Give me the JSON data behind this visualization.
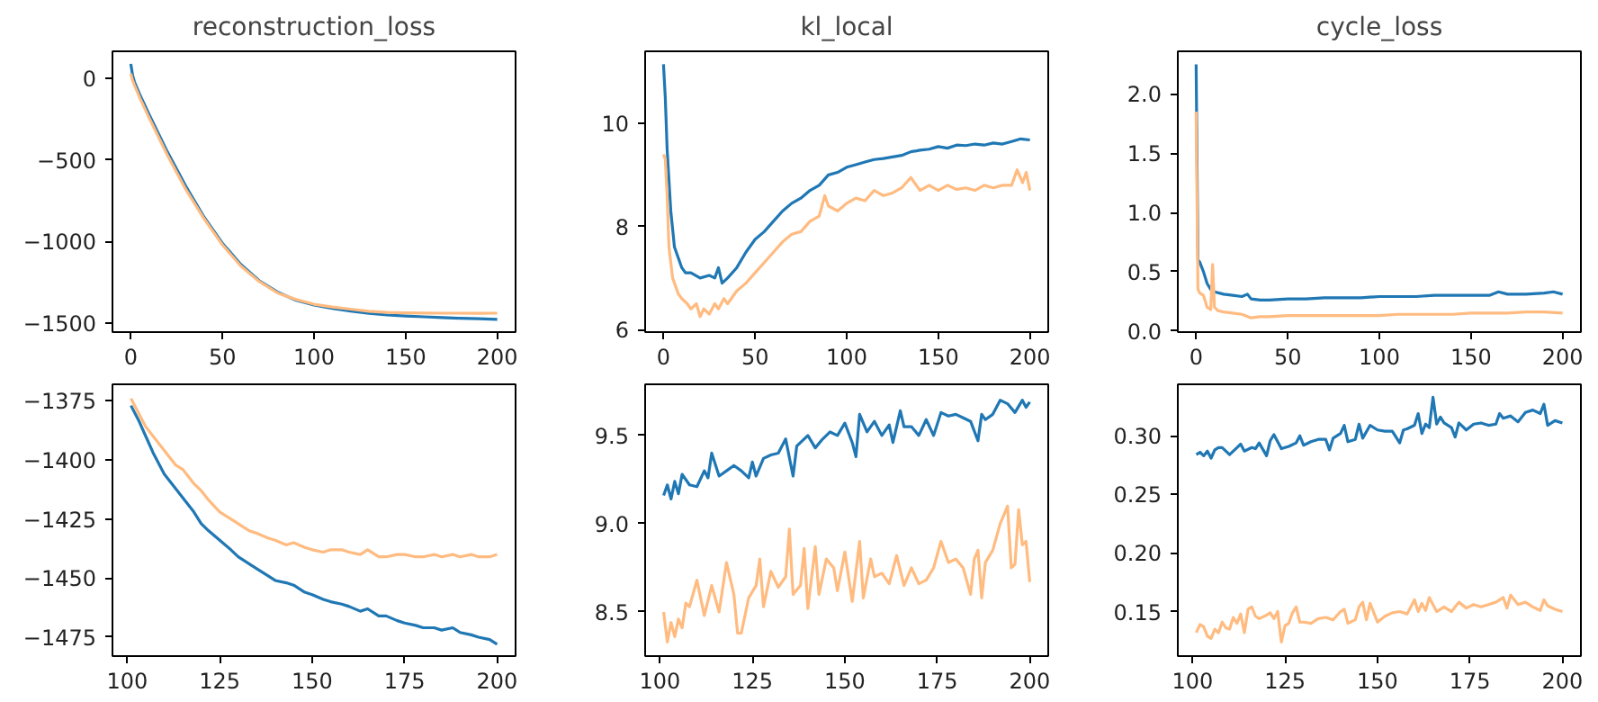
{
  "chart_data": [
    {
      "type": "line",
      "title": "reconstruction_loss",
      "grid": false,
      "xlim": [
        -10,
        210
      ],
      "ylim": [
        -1556,
        168
      ],
      "xticks": [
        0,
        50,
        100,
        150,
        200
      ],
      "yticks": [
        {
          "value": -1500,
          "label": "−1500"
        },
        {
          "value": -1000,
          "label": "−1000"
        },
        {
          "value": -500,
          "label": "−500"
        },
        0
      ],
      "series": [
        {
          "color": "#1f77b4",
          "x": [
            0,
            1,
            2,
            5,
            10,
            20,
            30,
            40,
            50,
            60,
            70,
            80,
            90,
            100,
            110,
            120,
            130,
            140,
            150,
            160,
            170,
            180,
            190,
            200
          ],
          "values": [
            90,
            20,
            -20,
            -100,
            -220,
            -450,
            -660,
            -850,
            -1010,
            -1140,
            -1240,
            -1310,
            -1360,
            -1390,
            -1410,
            -1427,
            -1441,
            -1451,
            -1457,
            -1462,
            -1467,
            -1471,
            -1474,
            -1478
          ]
        },
        {
          "color": "#ffbb80",
          "x": [
            0,
            1,
            2,
            5,
            10,
            20,
            30,
            40,
            50,
            60,
            70,
            80,
            90,
            100,
            110,
            120,
            130,
            140,
            150,
            160,
            170,
            180,
            190,
            200
          ],
          "values": [
            30,
            -10,
            -40,
            -120,
            -240,
            -470,
            -680,
            -860,
            -1020,
            -1150,
            -1245,
            -1315,
            -1355,
            -1385,
            -1402,
            -1415,
            -1428,
            -1435,
            -1438,
            -1439,
            -1440,
            -1440,
            -1441,
            -1440
          ]
        }
      ]
    },
    {
      "type": "line",
      "title": "kl_local",
      "grid": false,
      "xlim": [
        -10,
        210
      ],
      "ylim": [
        5.95,
        11.4
      ],
      "xticks": [
        0,
        50,
        100,
        150,
        200
      ],
      "yticks": [
        6,
        8,
        10
      ],
      "series": [
        {
          "color": "#1f77b4",
          "x": [
            0,
            1,
            2,
            4,
            6,
            8,
            10,
            12,
            15,
            20,
            25,
            28,
            30,
            32,
            35,
            40,
            45,
            50,
            55,
            60,
            65,
            70,
            75,
            80,
            85,
            90,
            95,
            100,
            105,
            110,
            115,
            120,
            125,
            130,
            135,
            140,
            145,
            150,
            155,
            160,
            165,
            170,
            175,
            180,
            185,
            190,
            195,
            200
          ],
          "values": [
            11.15,
            10.5,
            9.5,
            8.3,
            7.6,
            7.4,
            7.2,
            7.1,
            7.1,
            7.0,
            7.05,
            7.0,
            7.2,
            6.9,
            7.0,
            7.2,
            7.5,
            7.75,
            7.9,
            8.1,
            8.3,
            8.45,
            8.55,
            8.7,
            8.8,
            9.0,
            9.05,
            9.15,
            9.2,
            9.25,
            9.3,
            9.32,
            9.35,
            9.38,
            9.45,
            9.48,
            9.5,
            9.55,
            9.52,
            9.58,
            9.57,
            9.6,
            9.58,
            9.62,
            9.6,
            9.65,
            9.7,
            9.68
          ]
        },
        {
          "color": "#ffbb80",
          "x": [
            0,
            1,
            2,
            3,
            5,
            8,
            10,
            13,
            15,
            18,
            20,
            22,
            25,
            28,
            30,
            33,
            35,
            40,
            45,
            50,
            55,
            60,
            65,
            70,
            75,
            80,
            85,
            88,
            90,
            95,
            100,
            105,
            110,
            115,
            120,
            125,
            130,
            135,
            140,
            145,
            150,
            155,
            160,
            165,
            170,
            175,
            180,
            185,
            190,
            193,
            196,
            198,
            200
          ],
          "values": [
            9.4,
            9.3,
            8.6,
            7.6,
            7.0,
            6.7,
            6.6,
            6.5,
            6.4,
            6.5,
            6.25,
            6.4,
            6.3,
            6.5,
            6.4,
            6.6,
            6.5,
            6.75,
            6.9,
            7.1,
            7.3,
            7.5,
            7.7,
            7.85,
            7.9,
            8.1,
            8.2,
            8.6,
            8.4,
            8.3,
            8.45,
            8.55,
            8.5,
            8.7,
            8.6,
            8.65,
            8.75,
            8.95,
            8.7,
            8.8,
            8.7,
            8.8,
            8.72,
            8.75,
            8.7,
            8.8,
            8.75,
            8.8,
            8.8,
            9.1,
            8.85,
            9.05,
            8.7
          ]
        }
      ]
    },
    {
      "type": "line",
      "title": "cycle_loss",
      "grid": false,
      "xlim": [
        -10,
        210
      ],
      "ylim": [
        -0.01,
        2.36
      ],
      "xticks": [
        0,
        50,
        100,
        150,
        200
      ],
      "yticks": [
        {
          "value": 0,
          "label": "0.0"
        },
        0.5,
        {
          "value": 1,
          "label": "1.0"
        },
        1.5,
        {
          "value": 2,
          "label": "2.0"
        }
      ],
      "series": [
        {
          "color": "#1f77b4",
          "x": [
            0,
            1,
            2,
            4,
            6,
            8,
            10,
            15,
            20,
            25,
            28,
            30,
            35,
            40,
            50,
            60,
            70,
            80,
            90,
            100,
            110,
            120,
            130,
            140,
            150,
            160,
            165,
            170,
            180,
            190,
            195,
            200
          ],
          "values": [
            2.25,
            0.6,
            0.58,
            0.5,
            0.4,
            0.35,
            0.33,
            0.31,
            0.3,
            0.29,
            0.31,
            0.27,
            0.26,
            0.26,
            0.27,
            0.27,
            0.28,
            0.28,
            0.28,
            0.29,
            0.29,
            0.29,
            0.3,
            0.3,
            0.3,
            0.3,
            0.33,
            0.31,
            0.31,
            0.32,
            0.33,
            0.31
          ]
        },
        {
          "color": "#ffbb80",
          "x": [
            0,
            1,
            2,
            4,
            6,
            8,
            9,
            10,
            12,
            15,
            20,
            25,
            30,
            35,
            40,
            50,
            60,
            70,
            80,
            90,
            100,
            110,
            120,
            130,
            140,
            150,
            160,
            170,
            180,
            190,
            200
          ],
          "values": [
            1.85,
            0.35,
            0.32,
            0.3,
            0.2,
            0.18,
            0.56,
            0.2,
            0.17,
            0.16,
            0.15,
            0.14,
            0.11,
            0.12,
            0.12,
            0.13,
            0.13,
            0.13,
            0.13,
            0.13,
            0.13,
            0.14,
            0.14,
            0.14,
            0.14,
            0.15,
            0.15,
            0.15,
            0.16,
            0.16,
            0.15
          ]
        }
      ]
    },
    {
      "type": "line",
      "grid": false,
      "xlim": [
        96,
        205
      ],
      "ylim": [
        -1483,
        -1368
      ],
      "xticks": [
        100,
        125,
        150,
        175,
        200
      ],
      "yticks": [
        {
          "value": -1475,
          "label": "−1475"
        },
        {
          "value": -1450,
          "label": "−1450"
        },
        {
          "value": -1425,
          "label": "−1425"
        },
        {
          "value": -1400,
          "label": "−1400"
        },
        {
          "value": -1375,
          "label": "−1375"
        }
      ],
      "series": [
        {
          "color": "#1f77b4",
          "x": [
            101,
            103,
            105,
            107,
            110,
            113,
            115,
            118,
            120,
            122,
            125,
            128,
            130,
            133,
            135,
            138,
            140,
            143,
            145,
            148,
            150,
            153,
            155,
            158,
            160,
            163,
            165,
            168,
            170,
            173,
            175,
            178,
            180,
            183,
            185,
            188,
            190,
            193,
            195,
            198,
            200
          ],
          "values": [
            -1377,
            -1383,
            -1390,
            -1397,
            -1406,
            -1412,
            -1416,
            -1422,
            -1427,
            -1430,
            -1434,
            -1438,
            -1441,
            -1444,
            -1446,
            -1449,
            -1451,
            -1452,
            -1453,
            -1456,
            -1457,
            -1459,
            -1460,
            -1461,
            -1462,
            -1464,
            -1463,
            -1466,
            -1466,
            -1468,
            -1469,
            -1470,
            -1471,
            -1471,
            -1472,
            -1471,
            -1473,
            -1474,
            -1475,
            -1476,
            -1478
          ]
        },
        {
          "color": "#ffbb80",
          "x": [
            101,
            103,
            105,
            107,
            110,
            113,
            115,
            118,
            120,
            122,
            125,
            128,
            130,
            133,
            135,
            138,
            140,
            143,
            145,
            148,
            150,
            153,
            155,
            158,
            160,
            163,
            165,
            168,
            170,
            173,
            175,
            178,
            180,
            183,
            185,
            188,
            190,
            193,
            195,
            198,
            200
          ],
          "values": [
            -1374,
            -1380,
            -1386,
            -1390,
            -1396,
            -1402,
            -1404,
            -1410,
            -1413,
            -1417,
            -1422,
            -1425,
            -1427,
            -1430,
            -1431,
            -1433,
            -1434,
            -1436,
            -1435,
            -1437,
            -1438,
            -1439,
            -1438,
            -1438,
            -1439,
            -1440,
            -1438,
            -1441,
            -1441,
            -1440,
            -1440,
            -1441,
            -1441,
            -1440,
            -1441,
            -1440,
            -1441,
            -1440,
            -1441,
            -1441,
            -1440
          ]
        }
      ]
    },
    {
      "type": "line",
      "grid": false,
      "xlim": [
        96,
        205
      ],
      "ylim": [
        8.25,
        9.79
      ],
      "xticks": [
        100,
        125,
        150,
        175,
        200
      ],
      "yticks": [
        8.5,
        {
          "value": 9,
          "label": "9.0"
        },
        9.5
      ],
      "series": [
        {
          "color": "#1f77b4",
          "x": [
            101,
            102,
            103,
            104,
            105,
            106,
            108,
            110,
            112,
            113,
            114,
            116,
            118,
            120,
            122,
            124,
            125,
            126,
            128,
            130,
            132,
            134,
            136,
            137,
            140,
            142,
            144,
            146,
            148,
            150,
            152,
            153,
            154,
            156,
            158,
            160,
            162,
            163,
            165,
            166,
            168,
            170,
            172,
            174,
            176,
            178,
            180,
            182,
            184,
            186,
            187,
            188,
            190,
            192,
            194,
            196,
            198,
            199,
            200
          ],
          "values": [
            9.16,
            9.22,
            9.14,
            9.24,
            9.17,
            9.28,
            9.22,
            9.21,
            9.3,
            9.26,
            9.4,
            9.27,
            9.3,
            9.33,
            9.3,
            9.26,
            9.35,
            9.27,
            9.37,
            9.39,
            9.4,
            9.48,
            9.27,
            9.44,
            9.5,
            9.43,
            9.48,
            9.52,
            9.5,
            9.57,
            9.46,
            9.38,
            9.62,
            9.52,
            9.58,
            9.5,
            9.56,
            9.46,
            9.64,
            9.55,
            9.55,
            9.5,
            9.59,
            9.5,
            9.63,
            9.61,
            9.62,
            9.6,
            9.58,
            9.47,
            9.62,
            9.59,
            9.62,
            9.7,
            9.68,
            9.63,
            9.7,
            9.66,
            9.69
          ]
        },
        {
          "color": "#ffbb80",
          "x": [
            101,
            102,
            103,
            104,
            105,
            106,
            107,
            108,
            110,
            112,
            114,
            116,
            118,
            120,
            121,
            122,
            124,
            126,
            127,
            128,
            130,
            132,
            134,
            135,
            136,
            138,
            139,
            140,
            142,
            143,
            145,
            147,
            148,
            150,
            152,
            154,
            155,
            157,
            158,
            160,
            162,
            164,
            166,
            168,
            170,
            172,
            174,
            176,
            178,
            180,
            182,
            184,
            185,
            186,
            187,
            188,
            190,
            192,
            193,
            194,
            195,
            196,
            197,
            198,
            199,
            200
          ],
          "values": [
            8.5,
            8.33,
            8.44,
            8.36,
            8.46,
            8.41,
            8.55,
            8.53,
            8.68,
            8.48,
            8.65,
            8.5,
            8.78,
            8.6,
            8.38,
            8.38,
            8.58,
            8.65,
            8.8,
            8.53,
            8.73,
            8.64,
            8.7,
            8.97,
            8.6,
            8.65,
            8.86,
            8.52,
            8.87,
            8.6,
            8.8,
            8.75,
            8.62,
            8.84,
            8.56,
            8.9,
            8.58,
            8.8,
            8.7,
            8.72,
            8.66,
            8.82,
            8.65,
            8.75,
            8.66,
            8.68,
            8.75,
            8.9,
            8.78,
            8.8,
            8.75,
            8.6,
            8.8,
            8.85,
            8.58,
            8.78,
            8.85,
            9.0,
            9.05,
            9.1,
            8.75,
            8.77,
            9.08,
            8.88,
            8.9,
            8.67
          ]
        }
      ]
    },
    {
      "type": "line",
      "grid": false,
      "xlim": [
        96,
        205
      ],
      "ylim": [
        0.112,
        0.344
      ],
      "xticks": [
        100,
        125,
        150,
        175,
        200
      ],
      "yticks": [
        0.15,
        {
          "value": 0.2,
          "label": "0.20"
        },
        0.25,
        {
          "value": 0.3,
          "label": "0.30"
        }
      ],
      "series": [
        {
          "color": "#1f77b4",
          "x": [
            101,
            102,
            103,
            104,
            105,
            106,
            107,
            108,
            110,
            112,
            113,
            114,
            116,
            117,
            118,
            120,
            121,
            122,
            124,
            126,
            128,
            129,
            130,
            132,
            134,
            136,
            137,
            138,
            140,
            141,
            142,
            144,
            145,
            146,
            148,
            150,
            152,
            154,
            156,
            157,
            158,
            160,
            161,
            162,
            163,
            164,
            165,
            166,
            167,
            168,
            170,
            171,
            172,
            174,
            176,
            178,
            180,
            182,
            183,
            184,
            186,
            188,
            190,
            192,
            194,
            195,
            196,
            198,
            200
          ],
          "values": [
            0.284,
            0.286,
            0.283,
            0.287,
            0.281,
            0.288,
            0.29,
            0.29,
            0.284,
            0.29,
            0.293,
            0.287,
            0.29,
            0.289,
            0.294,
            0.283,
            0.296,
            0.301,
            0.289,
            0.291,
            0.294,
            0.3,
            0.292,
            0.295,
            0.297,
            0.297,
            0.288,
            0.298,
            0.302,
            0.309,
            0.295,
            0.297,
            0.31,
            0.298,
            0.309,
            0.305,
            0.304,
            0.304,
            0.294,
            0.305,
            0.306,
            0.309,
            0.319,
            0.302,
            0.31,
            0.307,
            0.333,
            0.31,
            0.316,
            0.311,
            0.307,
            0.299,
            0.311,
            0.305,
            0.31,
            0.311,
            0.309,
            0.31,
            0.319,
            0.315,
            0.317,
            0.312,
            0.32,
            0.322,
            0.319,
            0.327,
            0.309,
            0.313,
            0.311
          ]
        },
        {
          "color": "#ffbb80",
          "x": [
            101,
            102,
            103,
            104,
            105,
            106,
            107,
            108,
            109,
            110,
            111,
            112,
            113,
            114,
            115,
            116,
            117,
            118,
            120,
            121,
            122,
            123,
            124,
            125,
            126,
            127,
            128,
            129,
            130,
            132,
            134,
            136,
            138,
            140,
            141,
            142,
            144,
            145,
            146,
            147,
            148,
            150,
            152,
            154,
            156,
            158,
            160,
            161,
            162,
            163,
            164,
            166,
            168,
            170,
            172,
            174,
            176,
            178,
            180,
            182,
            184,
            185,
            186,
            188,
            190,
            192,
            194,
            195,
            196,
            198,
            200
          ],
          "values": [
            0.132,
            0.139,
            0.137,
            0.129,
            0.127,
            0.135,
            0.132,
            0.141,
            0.136,
            0.135,
            0.145,
            0.14,
            0.148,
            0.132,
            0.152,
            0.154,
            0.146,
            0.144,
            0.147,
            0.149,
            0.144,
            0.15,
            0.124,
            0.138,
            0.14,
            0.149,
            0.154,
            0.141,
            0.141,
            0.14,
            0.144,
            0.145,
            0.143,
            0.15,
            0.152,
            0.14,
            0.143,
            0.154,
            0.158,
            0.143,
            0.157,
            0.141,
            0.146,
            0.149,
            0.15,
            0.148,
            0.16,
            0.15,
            0.157,
            0.151,
            0.162,
            0.15,
            0.154,
            0.15,
            0.158,
            0.153,
            0.156,
            0.154,
            0.156,
            0.158,
            0.162,
            0.153,
            0.164,
            0.156,
            0.158,
            0.154,
            0.151,
            0.16,
            0.155,
            0.152,
            0.15
          ]
        }
      ]
    }
  ]
}
